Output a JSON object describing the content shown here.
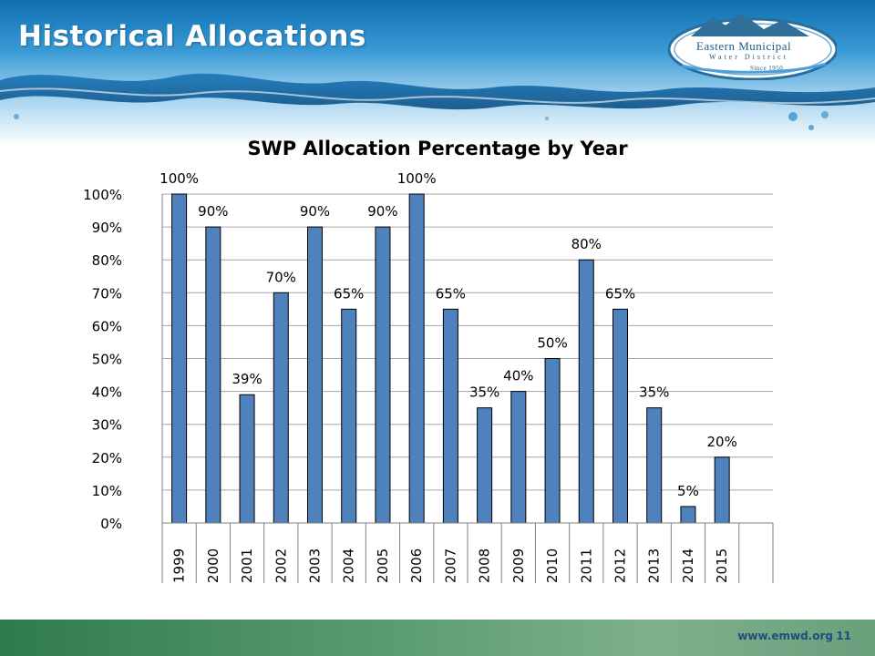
{
  "slide": {
    "title": "Historical Allocations",
    "footer_url": "www.emwd.org",
    "page_number": "11"
  },
  "logo": {
    "line1": "Eastern Municipal",
    "line2": "Water District",
    "line3": "Since 1950"
  },
  "colors": {
    "bar": "#4f81bd",
    "bar_outline": "#000000",
    "grid": "#a6a6a6",
    "header_water": "#1a7fc1",
    "footer": "#4a8c62"
  },
  "chart_data": {
    "type": "bar",
    "title": "SWP Allocation Percentage by Year",
    "categories": [
      "1999",
      "2000",
      "2001",
      "2002",
      "2003",
      "2004",
      "2005",
      "2006",
      "2007",
      "2008",
      "2009",
      "2010",
      "2011",
      "2012",
      "2013",
      "2014",
      "2015"
    ],
    "values": [
      100,
      90,
      39,
      70,
      90,
      65,
      90,
      100,
      65,
      35,
      40,
      50,
      80,
      65,
      35,
      5,
      20
    ],
    "data_labels": [
      "100%",
      "90%",
      "39%",
      "70%",
      "90%",
      "65%",
      "90%",
      "100%",
      "65%",
      "35%",
      "40%",
      "50%",
      "80%",
      "65%",
      "35%",
      "5%",
      "20%"
    ],
    "y_ticks": [
      "0%",
      "10%",
      "20%",
      "30%",
      "40%",
      "50%",
      "60%",
      "70%",
      "80%",
      "90%",
      "100%"
    ],
    "ylim": [
      0,
      100
    ],
    "xlabel": "",
    "ylabel": "",
    "grid": true,
    "legend": "none"
  }
}
